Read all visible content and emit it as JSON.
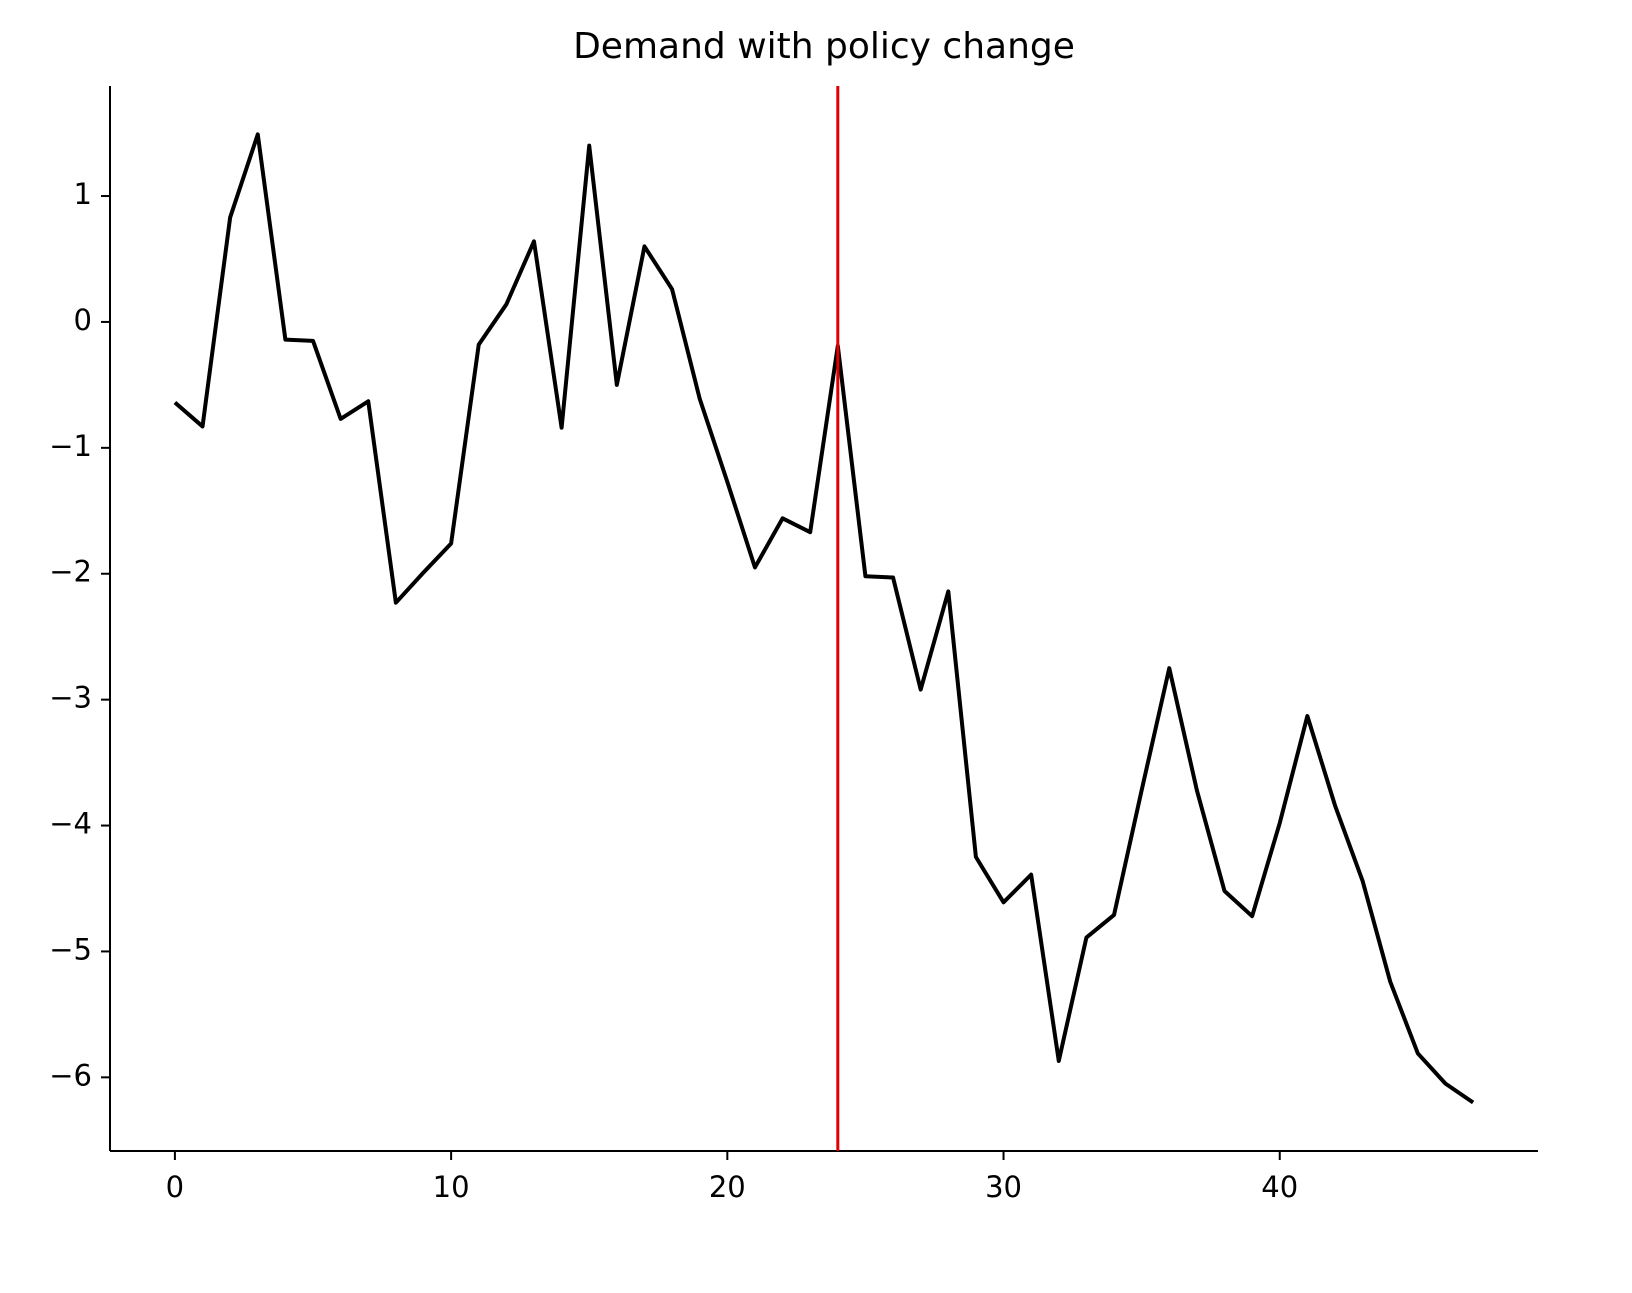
{
  "chart_data": {
    "type": "line",
    "title": "Demand with policy change",
    "x": [
      0,
      1,
      2,
      3,
      4,
      5,
      6,
      7,
      8,
      9,
      10,
      11,
      12,
      13,
      14,
      15,
      16,
      17,
      18,
      19,
      20,
      21,
      22,
      23,
      24,
      25,
      26,
      27,
      28,
      29,
      30,
      31,
      32,
      33,
      34,
      35,
      36,
      37,
      38,
      39,
      40,
      41,
      42,
      43,
      44,
      45,
      46,
      47
    ],
    "series": [
      {
        "color": "#000000",
        "values": [
          -0.64,
          -0.83,
          0.83,
          1.49,
          -0.14,
          -0.15,
          -0.77,
          -0.63,
          -2.23,
          -1.99,
          -1.76,
          -0.18,
          0.14,
          0.64,
          -0.84,
          1.4,
          -0.5,
          0.6,
          0.26,
          -0.61,
          -1.27,
          -1.95,
          -1.56,
          -1.67,
          -0.19,
          -2.02,
          -2.03,
          -2.92,
          -2.14,
          -4.25,
          -4.61,
          -4.39,
          -5.87,
          -4.89,
          -4.71,
          -3.72,
          -2.75,
          -3.72,
          -4.52,
          -4.72,
          -3.98,
          -3.13,
          -3.84,
          -4.44,
          -5.24,
          -5.81,
          -6.05,
          -6.2
        ]
      }
    ],
    "vline": {
      "x": 24,
      "color": "#e00000"
    },
    "xlim": [
      -2.35,
      49.35
    ],
    "ylim": [
      -6.585,
      1.874
    ],
    "xticks": [
      0,
      10,
      20,
      30,
      40
    ],
    "yticks": [
      {
        "value": -6,
        "label": "−6"
      },
      {
        "value": -5,
        "label": "−5"
      },
      {
        "value": -4,
        "label": "−4"
      },
      {
        "value": -3,
        "label": "−3"
      },
      {
        "value": -2,
        "label": "−2"
      },
      {
        "value": -1,
        "label": "−1"
      },
      0,
      1
    ],
    "grid": false
  }
}
